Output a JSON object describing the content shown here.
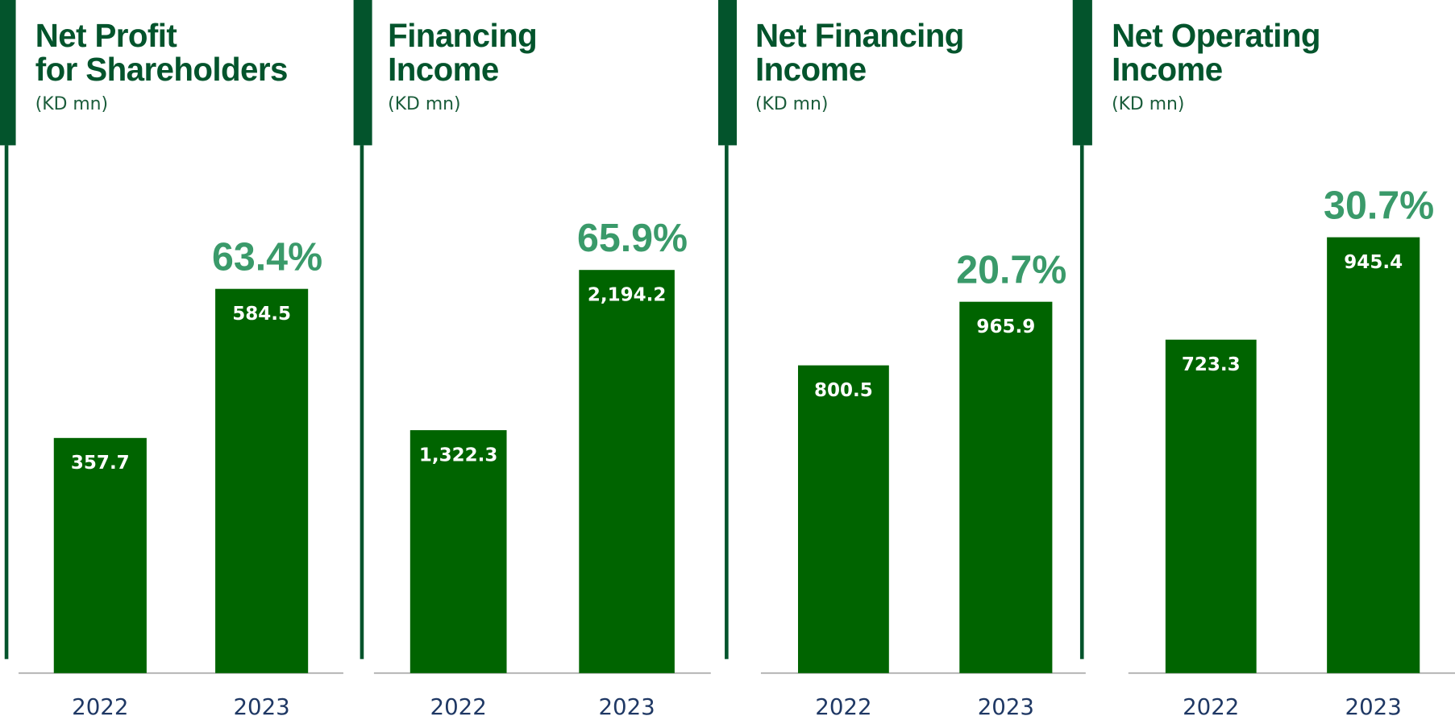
{
  "chart_data": [
    {
      "type": "bar",
      "title": [
        "Net Profit",
        "for Shareholders"
      ],
      "subtitle": "(KD mn)",
      "annotation": "63.4%",
      "categories": [
        "2022",
        "2023"
      ],
      "values": [
        357.7,
        584.5
      ],
      "value_labels": [
        "357.7",
        "584.5"
      ],
      "color": "#006400",
      "ylim": [
        0,
        810
      ]
    },
    {
      "type": "bar",
      "title": [
        "Financing",
        "Income"
      ],
      "subtitle": "(KD mn)",
      "annotation": "65.9%",
      "categories": [
        "2022",
        "2023"
      ],
      "values": [
        1322.3,
        2194.2
      ],
      "value_labels": [
        "1,322.3",
        "2,194.2"
      ],
      "color": "#006400",
      "ylim": [
        0,
        2898
      ]
    },
    {
      "type": "bar",
      "title": [
        "Net Financing",
        "Income"
      ],
      "subtitle": "(KD mn)",
      "annotation": "20.7%",
      "categories": [
        "2022",
        "2023"
      ],
      "values": [
        800.5,
        965.9
      ],
      "value_labels": [
        "800.5",
        "965.9"
      ],
      "color": "#006400",
      "ylim": [
        0,
        1385
      ]
    },
    {
      "type": "bar",
      "title": [
        "Net Operating",
        "Income"
      ],
      "subtitle": "(KD mn)",
      "annotation": "30.7%",
      "categories": [
        "2022",
        "2023"
      ],
      "values": [
        723.3,
        945.4
      ],
      "value_labels": [
        "723.3",
        "945.4"
      ],
      "color": "#006400",
      "ylim": [
        0,
        1155
      ]
    }
  ]
}
